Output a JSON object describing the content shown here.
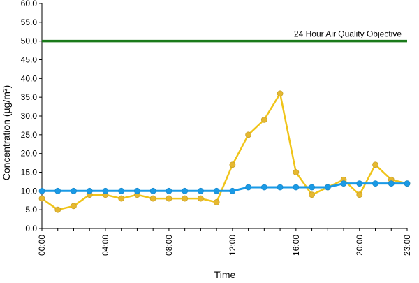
{
  "chart_data": {
    "type": "line",
    "xlabel": "Time",
    "ylabel": "Concentration (µg/m³)",
    "ylim": [
      0,
      60
    ],
    "y_tick_labels": [
      "0.0",
      "5.0",
      "10.0",
      "15.0",
      "20.0",
      "25.0",
      "30.0",
      "35.0",
      "40.0",
      "45.0",
      "50.0",
      "55.0",
      "60.0"
    ],
    "x_hours": [
      0,
      1,
      2,
      3,
      4,
      5,
      6,
      7,
      8,
      9,
      10,
      11,
      12,
      13,
      14,
      15,
      16,
      17,
      18,
      19,
      20,
      21,
      22,
      23
    ],
    "x_tick_labels": [
      {
        "hour": 0,
        "label": "00:00"
      },
      {
        "hour": 4,
        "label": "04:00"
      },
      {
        "hour": 8,
        "label": "08:00"
      },
      {
        "hour": 12,
        "label": "12:00"
      },
      {
        "hour": 16,
        "label": "16:00"
      },
      {
        "hour": 20,
        "label": "20:00"
      },
      {
        "hour": 23,
        "label": "23:00"
      }
    ],
    "grid": false,
    "series": [
      {
        "color": "#f0c419",
        "marker_color": "#e6b830",
        "values": [
          8,
          5,
          6,
          9,
          9,
          8,
          9,
          8,
          8,
          8,
          8,
          7,
          17,
          25,
          29,
          36,
          15,
          9,
          11,
          13,
          9,
          17,
          13,
          12
        ]
      },
      {
        "color": "#1a9ae6",
        "marker_color": "#1a9ae6",
        "values": [
          10,
          10,
          10,
          10,
          10,
          10,
          10,
          10,
          10,
          10,
          10,
          10,
          10,
          11,
          11,
          11,
          11,
          11,
          11,
          12,
          12,
          12,
          12,
          12
        ]
      }
    ],
    "reference_line": {
      "value": 50,
      "label": "24 Hour Air Quality Objective",
      "color": "#1a7a1a"
    }
  }
}
